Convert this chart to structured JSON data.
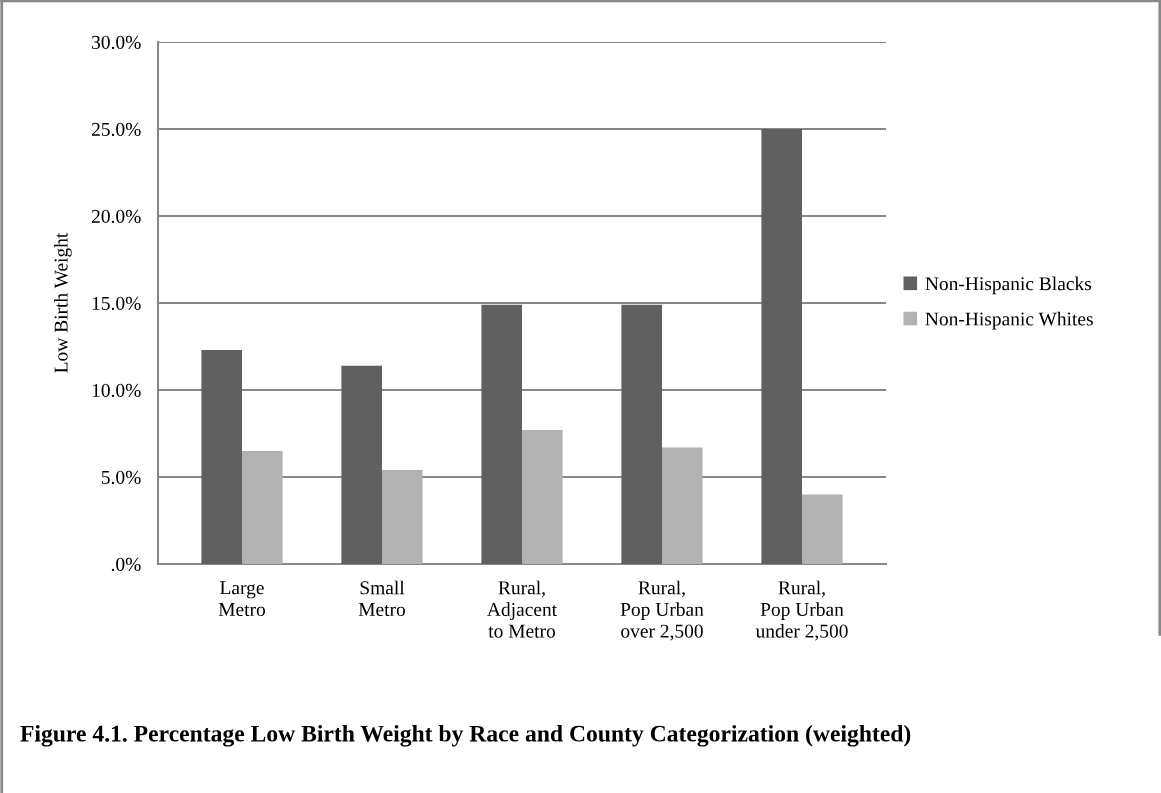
{
  "chart_data": {
    "type": "bar",
    "title": "Figure 4.1. Percentage Low Birth Weight by Race and County Categorization (weighted)",
    "ylabel": "Low Birth Weight",
    "categories": [
      "Large\nMetro",
      "Small\nMetro",
      "Rural,\nAdjacent\nto Metro",
      "Rural,\nPop Urban\nover 2,500",
      "Rural,\nPop Urban\nunder 2,500"
    ],
    "series": [
      {
        "name": "Non-Hispanic Blacks",
        "color": "#606060",
        "values": [
          12.3,
          11.4,
          14.9,
          14.9,
          25.0
        ]
      },
      {
        "name": "Non-Hispanic Whites",
        "color": "#b2b2b2",
        "values": [
          6.5,
          5.4,
          7.7,
          6.7,
          4.0
        ]
      }
    ],
    "ylim": [
      0,
      30
    ],
    "yticks": [
      {
        "value": 0,
        "label": ".0%"
      },
      {
        "value": 5,
        "label": "5.0%"
      },
      {
        "value": 10,
        "label": "10.0%"
      },
      {
        "value": 15,
        "label": "15.0%"
      },
      {
        "value": 20,
        "label": "20.0%"
      },
      {
        "value": 25,
        "label": "25.0%"
      },
      {
        "value": 30,
        "label": "30.0%"
      }
    ],
    "grid": "y",
    "legend": "right"
  }
}
